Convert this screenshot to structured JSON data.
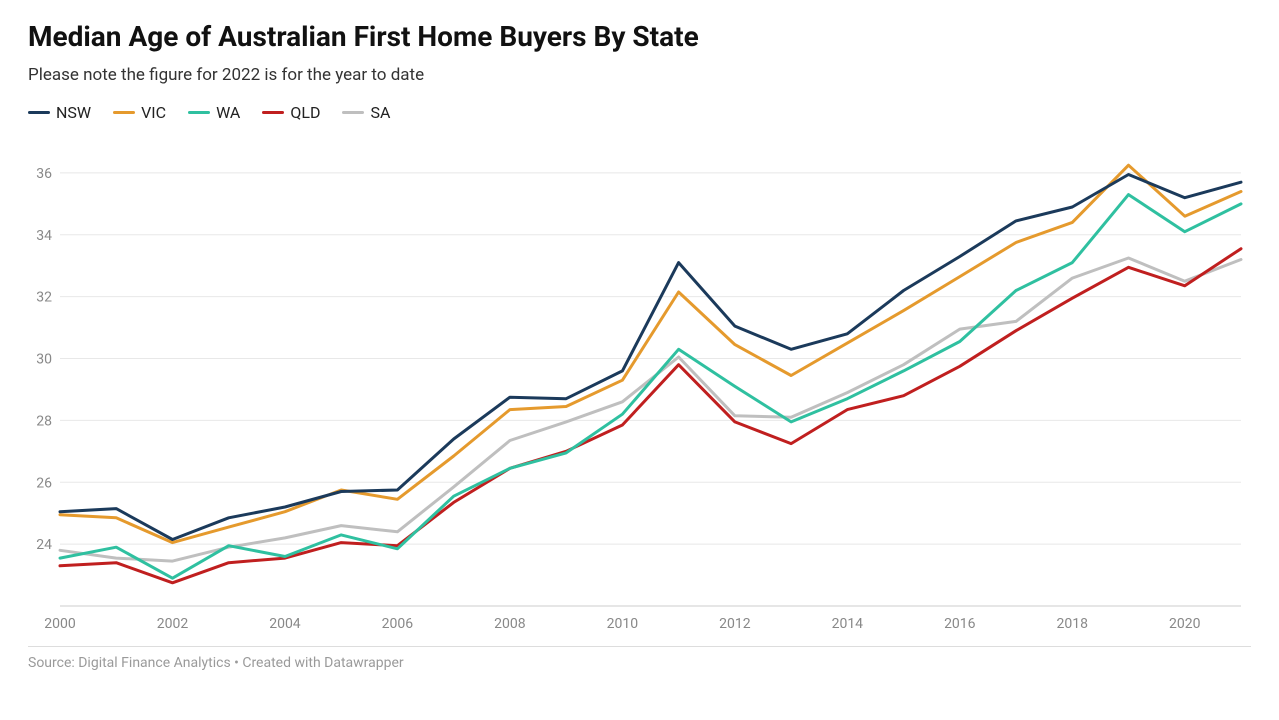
{
  "title": "Median Age of Australian First Home Buyers By State",
  "subtitle": "Please note the figure for 2022 is for the year to date",
  "source": "Source: Digital Finance Analytics • Created with Datawrapper",
  "chart": {
    "type": "line",
    "background_color": "#ffffff",
    "grid_color": "#e8e8e8",
    "axis_text_color": "#888888",
    "title_fontsize": 28,
    "subtitle_fontsize": 17,
    "axis_fontsize": 14,
    "line_width": 3,
    "x": {
      "years": [
        2000,
        2001,
        2002,
        2003,
        2004,
        2005,
        2006,
        2007,
        2008,
        2009,
        2010,
        2011,
        2012,
        2013,
        2014,
        2015,
        2016,
        2017,
        2018,
        2019,
        2020,
        2021
      ],
      "tick_labels": [
        "2000",
        "2002",
        "2004",
        "2006",
        "2008",
        "2010",
        "2012",
        "2014",
        "2016",
        "2018",
        "2020"
      ],
      "tick_years": [
        2000,
        2002,
        2004,
        2006,
        2008,
        2010,
        2012,
        2014,
        2016,
        2018,
        2020
      ]
    },
    "y": {
      "min": 22,
      "max": 37,
      "ticks": [
        24,
        26,
        28,
        30,
        32,
        34,
        36
      ],
      "tick_labels": [
        "24",
        "26",
        "28",
        "30",
        "32",
        "34",
        "36"
      ]
    },
    "legend_order": [
      "NSW",
      "VIC",
      "WA",
      "QLD",
      "SA"
    ],
    "series": {
      "NSW": {
        "label": "NSW",
        "color": "#1b3a5b",
        "values": [
          25.05,
          25.15,
          24.15,
          24.85,
          25.2,
          25.7,
          25.75,
          27.4,
          28.75,
          28.7,
          29.6,
          33.1,
          31.05,
          30.3,
          30.8,
          32.2,
          33.3,
          34.45,
          34.9,
          35.95,
          35.2,
          35.7
        ]
      },
      "VIC": {
        "label": "VIC",
        "color": "#e59a2d",
        "values": [
          24.95,
          24.85,
          24.05,
          24.55,
          25.05,
          25.75,
          25.45,
          26.85,
          28.35,
          28.45,
          29.3,
          32.15,
          30.45,
          29.45,
          30.5,
          31.55,
          32.65,
          33.75,
          34.4,
          36.25,
          34.6,
          35.4
        ]
      },
      "WA": {
        "label": "WA",
        "color": "#2fc0a0",
        "values": [
          23.55,
          23.9,
          22.9,
          23.95,
          23.6,
          24.3,
          23.85,
          25.55,
          26.45,
          26.95,
          28.2,
          30.3,
          29.1,
          27.95,
          28.7,
          29.6,
          30.55,
          32.2,
          33.1,
          35.3,
          34.1,
          35.0
        ]
      },
      "QLD": {
        "label": "QLD",
        "color": "#c01f1f",
        "values": [
          23.3,
          23.4,
          22.75,
          23.4,
          23.55,
          24.05,
          23.95,
          25.35,
          26.45,
          27.0,
          27.85,
          29.8,
          27.95,
          27.25,
          28.35,
          28.8,
          29.75,
          30.9,
          31.95,
          32.95,
          32.35,
          33.55
        ]
      },
      "SA": {
        "label": "SA",
        "color": "#bfbfbf",
        "values": [
          23.8,
          23.55,
          23.45,
          23.9,
          24.2,
          24.6,
          24.4,
          25.85,
          27.35,
          27.95,
          28.6,
          30.05,
          28.15,
          28.1,
          28.9,
          29.8,
          30.95,
          31.2,
          32.6,
          33.25,
          32.5,
          33.2
        ]
      }
    }
  }
}
